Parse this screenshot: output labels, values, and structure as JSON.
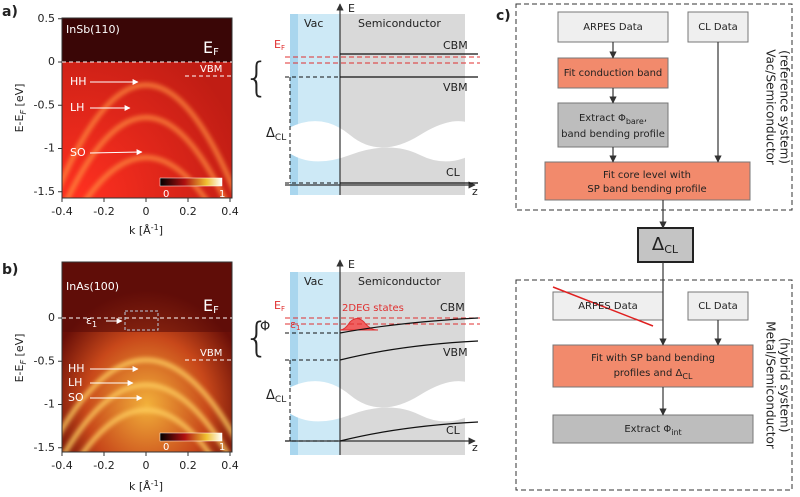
{
  "panel_a": {
    "label": "a)",
    "sample": "InSb(110)",
    "fermi": {
      "main": "E",
      "sub": "F"
    },
    "bands": [
      "HH",
      "LH",
      "SO"
    ],
    "vbm": "VBM",
    "colorbar": [
      0,
      1
    ],
    "y_axis": {
      "label": {
        "main": "E-E",
        "sub": "F",
        "unit": " [eV]"
      },
      "ticks": [
        0.5,
        0,
        -0.5,
        -1,
        -1.5
      ]
    },
    "x_axis": {
      "label": {
        "main": "k [Å",
        "sup": "-1",
        "unit": "]"
      },
      "ticks": [
        -0.4,
        -0.2,
        0,
        0.2,
        0.4
      ]
    }
  },
  "diagram_a": {
    "energy_axis": "E",
    "position_axis": "z",
    "vacuum": "Vac",
    "semiconductor": "Semiconductor",
    "fermi": {
      "main": "E",
      "sub": "F"
    },
    "levels": [
      "CBM",
      "VBM",
      "CL"
    ],
    "core_offset": {
      "main": "Δ",
      "sub": "CL"
    }
  },
  "panel_b": {
    "label": "b)",
    "sample": "InAs(100)",
    "fermi": {
      "main": "E",
      "sub": "F"
    },
    "eps": {
      "main": "ε",
      "sub": "1"
    },
    "bands": [
      "HH",
      "LH",
      "SO"
    ],
    "vbm": "VBM",
    "colorbar": [
      0,
      1
    ],
    "y_axis": {
      "label": {
        "main": "E-E",
        "sub": "F",
        "unit": " [eV]"
      },
      "ticks": [
        0,
        -0.5,
        -1,
        -1.5
      ]
    },
    "x_axis": {
      "label": {
        "main": "k [Å",
        "sup": "-1",
        "unit": "]"
      },
      "ticks": [
        -0.4,
        -0.2,
        0,
        0.2,
        0.4
      ]
    }
  },
  "diagram_b": {
    "energy_axis": "E",
    "position_axis": "z",
    "vacuum": "Vac",
    "semiconductor": "Semiconductor",
    "fermi": {
      "main": "E",
      "sub": "F"
    },
    "work_function": "Φ",
    "eps": {
      "main": "ε",
      "sub": "1"
    },
    "states": "2DEG states",
    "levels": [
      "CBM",
      "VBM",
      "CL"
    ],
    "core_offset": {
      "main": "Δ",
      "sub": "CL"
    }
  },
  "flow": {
    "label": "c)",
    "delta": {
      "main": "Δ",
      "sub": "CL"
    },
    "reference": {
      "title": "Vac/Semiconductor",
      "subtitle": "(reference system)",
      "inputs": [
        "ARPES Data",
        "CL Data"
      ],
      "fit_cb": "Fit conduction band",
      "extract": {
        "main": "Extract  Φ",
        "sub": "bare",
        "tail": ",",
        "line2": "band bending profile"
      },
      "fit_cl": [
        "Fit core level with",
        "SP band bending profile"
      ]
    },
    "hybrid": {
      "title": "Metal/Semiconductor",
      "subtitle": "(hybrid system)",
      "inputs": [
        "ARPES Data",
        "CL Data"
      ],
      "fit": {
        "line1": "Fit with SP band bending",
        "line2": "profiles and  Δ",
        "sub": "CL"
      },
      "extract": {
        "main": "Extract  Φ",
        "sub": "int"
      }
    }
  }
}
